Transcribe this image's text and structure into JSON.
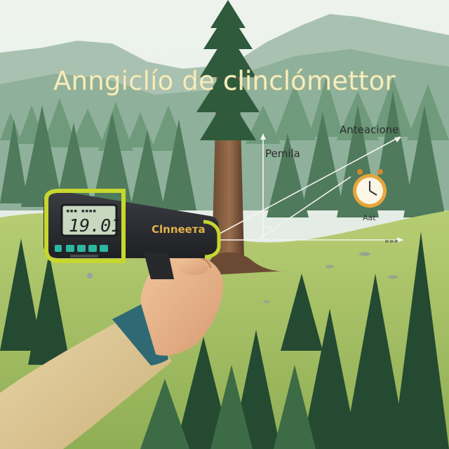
{
  "title": "Anngiclío de clinclómettor",
  "device": {
    "brand": "Clnneета",
    "display_value": "19.01"
  },
  "annotations": {
    "label_left": "Pemila",
    "label_right": "Anteacione",
    "clock_caption": "Aát",
    "arrow_tag": "»»»"
  },
  "colors": {
    "sky": "#e6eee8",
    "mountain_far": "#a9c1b1",
    "mountain_near": "#7fa48c",
    "forest_dark": "#2f5a3c",
    "meadow": "#a9c36a",
    "device_body": "#2c2e33",
    "device_accent": "#c7d72d",
    "screen": "#c7d7c0"
  },
  "icons": [
    "clock-icon",
    "arrow-right-icon"
  ]
}
